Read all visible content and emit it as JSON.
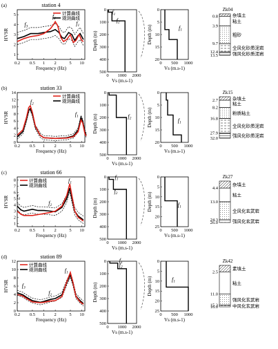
{
  "panels": [
    {
      "letter": "(a)",
      "station": "station 4",
      "legend": [
        "计算曲线",
        "观测曲线"
      ],
      "hv": {
        "xlabel": "Frequency (Hz)",
        "ylabel": "HVSR",
        "xticks": [
          "0.2",
          "0.5",
          "1",
          "2",
          "5",
          "10"
        ],
        "yticks": [
          "1",
          "2",
          "3",
          "4",
          "5"
        ],
        "ymin": 0.5,
        "ymax": 5.5,
        "red": [
          [
            0.2,
            2.3
          ],
          [
            0.3,
            2.6
          ],
          [
            0.45,
            2.8
          ],
          [
            0.7,
            2.9
          ],
          [
            1,
            3.1
          ],
          [
            1.5,
            3.6
          ],
          [
            1.8,
            4.0
          ],
          [
            2,
            4.3
          ],
          [
            2.3,
            3.9
          ],
          [
            2.8,
            2.7
          ],
          [
            3.3,
            2.3
          ],
          [
            4,
            2.5
          ],
          [
            5,
            3.0
          ],
          [
            6,
            2.2
          ],
          [
            7,
            2.4
          ],
          [
            8.5,
            3.0
          ],
          [
            10,
            2.4
          ],
          [
            11,
            2.3
          ]
        ],
        "black": [
          [
            0.2,
            2.6
          ],
          [
            0.3,
            2.8
          ],
          [
            0.45,
            3.1
          ],
          [
            0.7,
            3.1
          ],
          [
            1,
            3.2
          ],
          [
            1.5,
            3.3
          ],
          [
            2,
            3.5
          ],
          [
            2.5,
            3.2
          ],
          [
            3,
            2.7
          ],
          [
            3.5,
            2.6
          ],
          [
            4.5,
            3.2
          ],
          [
            5.5,
            3.0
          ],
          [
            6.5,
            2.4
          ],
          [
            8,
            2.9
          ],
          [
            9,
            3.1
          ],
          [
            11,
            2.5
          ]
        ],
        "peaks": [
          {
            "label": "f3",
            "f": 0.35,
            "v": 3.7
          },
          {
            "label": "f2",
            "f": 1.9,
            "v": 4.5
          },
          {
            "label": "f1",
            "f": 8,
            "v": 3.8
          }
        ]
      },
      "vs": {
        "xlabel": "Vs (m.s-1)",
        "ylabel": "Depth (m)",
        "xticks": [
          "0",
          "1000",
          "2000"
        ],
        "xmax": 2000,
        "yticks": [
          "0",
          "100",
          "200",
          "300",
          "400",
          "500"
        ],
        "ymax": 500,
        "steps": [
          [
            50,
            0
          ],
          [
            50,
            20
          ],
          [
            300,
            20
          ],
          [
            300,
            90
          ],
          [
            1200,
            90
          ],
          [
            1200,
            500
          ]
        ],
        "peaks": [
          {
            "label": "f1",
            "v": 300,
            "d": 35
          },
          {
            "label": "f2",
            "v": 600,
            "d": 100
          }
        ]
      },
      "vsz": {
        "xlabel": "Vs (m.s-1)",
        "ylabel": "Depth (m)",
        "xticks": [
          "0",
          "500",
          "1000"
        ],
        "xmax": 1000,
        "yticks": [
          "0",
          "5",
          "10",
          "15",
          "20"
        ],
        "ymax": 20,
        "steps": [
          [
            150,
            0
          ],
          [
            150,
            8
          ],
          [
            300,
            8
          ],
          [
            300,
            12
          ],
          [
            600,
            12
          ],
          [
            600,
            20
          ]
        ],
        "peaks": [
          {
            "label": "f1",
            "v": 650,
            "d": 8
          }
        ]
      },
      "bore": {
        "name": "Zk04",
        "layers": [
          {
            "depth": "0.8",
            "label": "杂填土"
          },
          {
            "depth": "3.9",
            "label": "粘土"
          },
          {
            "depth": "9.7",
            "label": "粗砂"
          },
          {
            "depth": "12.4",
            "label": "全风化砂质泥岩"
          },
          {
            "depth": "13.5",
            "label": "强风化砂质泥岩"
          }
        ]
      }
    },
    {
      "letter": "(b)",
      "station": "station 33",
      "legend": [
        "计算曲线",
        "观测曲线"
      ],
      "hv": {
        "xlabel": "Frequency (Hz)",
        "ylabel": "HVSR",
        "xticks": [
          "0.2",
          "0.5",
          "1",
          "2",
          "5",
          "10"
        ],
        "yticks": [
          "0",
          "2",
          "4",
          "6",
          "8",
          "10",
          "12",
          "14"
        ],
        "ymin": 0,
        "ymax": 14,
        "red": [
          [
            0.2,
            2.0
          ],
          [
            0.28,
            3.5
          ],
          [
            0.35,
            7.0
          ],
          [
            0.4,
            9.8
          ],
          [
            0.44,
            10.3
          ],
          [
            0.5,
            8.5
          ],
          [
            0.6,
            4.5
          ],
          [
            0.8,
            2.0
          ],
          [
            1,
            1.3
          ],
          [
            2,
            1.1
          ],
          [
            4,
            1.2
          ],
          [
            6,
            1.6
          ],
          [
            8,
            3.0
          ],
          [
            9.5,
            6.3
          ],
          [
            10.5,
            5.5
          ],
          [
            12,
            2.5
          ],
          [
            13,
            1.8
          ]
        ],
        "black": [
          [
            0.2,
            1.5
          ],
          [
            0.28,
            3.0
          ],
          [
            0.35,
            6.5
          ],
          [
            0.4,
            9.0
          ],
          [
            0.44,
            9.5
          ],
          [
            0.5,
            8.0
          ],
          [
            0.6,
            4.3
          ],
          [
            0.8,
            2.0
          ],
          [
            1,
            1.3
          ],
          [
            2,
            1.1
          ],
          [
            4,
            1.3
          ],
          [
            6,
            1.8
          ],
          [
            8,
            3.5
          ],
          [
            9.5,
            7.0
          ],
          [
            10.5,
            6.0
          ],
          [
            12,
            3.0
          ],
          [
            13,
            2.0
          ]
        ],
        "peaks": [
          {
            "label": "f2",
            "f": 0.5,
            "v": 10.5
          },
          {
            "label": "f1",
            "f": 7.5,
            "v": 7.0
          }
        ]
      },
      "vs": {
        "xlabel": "Vs (m.s-1)",
        "ylabel": "Depth (m)",
        "xticks": [
          "0",
          "1000",
          "2000"
        ],
        "xmax": 2000,
        "yticks": [
          "0",
          "100",
          "200",
          "300",
          "400",
          "500"
        ],
        "ymax": 500,
        "steps": [
          [
            100,
            0
          ],
          [
            100,
            20
          ],
          [
            600,
            20
          ],
          [
            600,
            200
          ],
          [
            1300,
            200
          ],
          [
            1300,
            500
          ]
        ],
        "peaks": [
          {
            "label": "f2",
            "v": 1400,
            "d": 205
          }
        ]
      },
      "vsz": {
        "xlabel": "Vs (m.s-1)",
        "ylabel": "Depth (m)",
        "xticks": [
          "0",
          "500",
          "1000"
        ],
        "xmax": 1000,
        "yticks": [
          "0",
          "5",
          "10",
          "15",
          "20"
        ],
        "ymax": 20,
        "steps": [
          [
            200,
            0
          ],
          [
            200,
            3
          ],
          [
            250,
            3
          ],
          [
            250,
            9
          ],
          [
            450,
            9
          ],
          [
            450,
            17
          ],
          [
            750,
            17
          ],
          [
            750,
            20
          ]
        ],
        "peaks": [
          {
            "label": "f1",
            "v": 620,
            "d": 12
          }
        ]
      },
      "bore": {
        "name": "Zk15",
        "layers": [
          {
            "depth": "2.7",
            "label": "杂填土"
          },
          {
            "depth": "8.2",
            "label": "粘土"
          },
          {
            "depth": "16.8",
            "label": "粉质粘土"
          },
          {
            "depth": "27.9",
            "label": "全风化砂质泥岩"
          },
          {
            "depth": "32.0",
            "label": "强风化砂质泥岩"
          }
        ]
      }
    },
    {
      "letter": "(c)",
      "station": "station 66",
      "legend": [
        "计算曲线",
        "观测曲线"
      ],
      "hv": {
        "xlabel": "Frequency (Hz)",
        "ylabel": "HVSR",
        "xticks": [
          "0.2",
          "0.5",
          "1",
          "2",
          "5",
          "10"
        ],
        "yticks": [
          "1",
          "2",
          "3",
          "4",
          "5",
          "6",
          "7",
          "8"
        ],
        "ymin": 0.5,
        "ymax": 8.5,
        "red": [
          [
            0.2,
            3.0
          ],
          [
            0.25,
            2.5
          ],
          [
            0.3,
            2.3
          ],
          [
            0.5,
            2.3
          ],
          [
            0.8,
            2.5
          ],
          [
            1,
            2.6
          ],
          [
            1.5,
            2.8
          ],
          [
            2,
            3.0
          ],
          [
            3,
            3.8
          ],
          [
            4,
            5.5
          ],
          [
            4.8,
            7.4
          ],
          [
            5.5,
            5.5
          ],
          [
            6.5,
            3.0
          ],
          [
            8,
            2.0
          ],
          [
            11,
            1.4
          ]
        ],
        "black": [
          [
            0.2,
            3.8
          ],
          [
            0.25,
            3.2
          ],
          [
            0.3,
            3.0
          ],
          [
            0.5,
            3.3
          ],
          [
            0.7,
            3.1
          ],
          [
            1,
            3.1
          ],
          [
            1.5,
            3.0
          ],
          [
            2,
            2.9
          ],
          [
            3,
            3.6
          ],
          [
            4,
            5.0
          ],
          [
            4.8,
            6.7
          ],
          [
            5.5,
            5.0
          ],
          [
            6.5,
            3.0
          ],
          [
            8,
            2.2
          ],
          [
            11,
            1.6
          ]
        ],
        "peaks": [
          {
            "label": "f3",
            "f": 0.22,
            "v": 4.8
          },
          {
            "label": "f2",
            "f": 1.5,
            "v": 3.8
          },
          {
            "label": "f1",
            "f": 5,
            "v": 7.4
          }
        ]
      },
      "vs": {
        "xlabel": "Vs (m.s-1)",
        "ylabel": "Depth (m)",
        "xticks": [
          "0",
          "1000",
          "2000"
        ],
        "xmax": 2000,
        "yticks": [
          "0",
          "100",
          "200",
          "300",
          "400",
          "500"
        ],
        "ymax": 500,
        "steps": [
          [
            100,
            0
          ],
          [
            100,
            20
          ],
          [
            400,
            20
          ],
          [
            400,
            100
          ],
          [
            1300,
            100
          ],
          [
            1300,
            500
          ]
        ],
        "peaks": [
          {
            "label": "f1",
            "v": 500,
            "d": 18
          },
          {
            "label": "f2",
            "v": 450,
            "d": 130
          }
        ]
      },
      "vsz": {
        "xlabel": "Vs (m.s-1)",
        "ylabel": "Depth (m)",
        "xticks": [
          "0",
          "500",
          "1000"
        ],
        "xmax": 1000,
        "yticks": [
          "0",
          "5",
          "10",
          "15",
          "20",
          "25"
        ],
        "ymax": 25,
        "steps": [
          [
            150,
            0
          ],
          [
            150,
            12
          ],
          [
            600,
            12
          ],
          [
            600,
            25
          ]
        ],
        "peaks": [
          {
            "label": "f1",
            "v": 620,
            "d": 15
          }
        ]
      },
      "bore": {
        "name": "Zk27",
        "layers": [
          {
            "depth": "4.4",
            "label": "杂填土"
          },
          {
            "depth": "13.0",
            "label": "粘土"
          },
          {
            "depth": "24.3",
            "label": "全风化玄武岩"
          },
          {
            "depth": "26.0",
            "label": "强风化玄武岩"
          }
        ]
      }
    },
    {
      "letter": "(d)",
      "station": "station 89",
      "legend": [
        "计算曲线",
        "观测曲线"
      ],
      "hv": {
        "xlabel": "Frequency (Hz)",
        "ylabel": "HVSR",
        "xticks": [
          "0.2",
          "0.5",
          "1",
          "2",
          "5",
          "10"
        ],
        "yticks": [
          "0",
          "2",
          "4",
          "6",
          "8",
          "10",
          "12"
        ],
        "ymin": 0,
        "ymax": 12,
        "red": [
          [
            0.2,
            4.0
          ],
          [
            0.28,
            3.6
          ],
          [
            0.35,
            3.0
          ],
          [
            0.5,
            2.2
          ],
          [
            0.8,
            2.0
          ],
          [
            1,
            2.1
          ],
          [
            1.5,
            2.4
          ],
          [
            2,
            2.5
          ],
          [
            3,
            3.5
          ],
          [
            4,
            7.0
          ],
          [
            5,
            9.3
          ],
          [
            5.8,
            7.0
          ],
          [
            7,
            3.5
          ],
          [
            9,
            2.2
          ],
          [
            11,
            1.6
          ]
        ],
        "black": [
          [
            0.2,
            4.4
          ],
          [
            0.28,
            3.9
          ],
          [
            0.35,
            3.3
          ],
          [
            0.5,
            2.5
          ],
          [
            0.8,
            2.1
          ],
          [
            1,
            2.3
          ],
          [
            1.5,
            2.8
          ],
          [
            2,
            3.0
          ],
          [
            3,
            3.9
          ],
          [
            4,
            6.8
          ],
          [
            5,
            8.7
          ],
          [
            5.8,
            6.8
          ],
          [
            7,
            3.6
          ],
          [
            9,
            2.5
          ],
          [
            11,
            1.8
          ]
        ],
        "peaks": [
          {
            "label": "f3",
            "f": 0.3,
            "v": 5.3
          },
          {
            "label": "f2",
            "f": 1.5,
            "v": 3.6
          },
          {
            "label": "f1",
            "f": 4,
            "v": 9.0
          }
        ]
      },
      "vs": {
        "xlabel": "Vs (m.s-1)",
        "ylabel": "Depth (m)",
        "xticks": [
          "0",
          "1000",
          "2000"
        ],
        "xmax": 2000,
        "yticks": [
          "0",
          "100",
          "200",
          "300",
          "400",
          "500"
        ],
        "ymax": 500,
        "steps": [
          [
            150,
            0
          ],
          [
            150,
            15
          ],
          [
            700,
            15
          ],
          [
            700,
            60
          ],
          [
            1300,
            60
          ],
          [
            1300,
            500
          ]
        ],
        "peaks": [
          {
            "label": "f1",
            "v": 800,
            "d": 8
          },
          {
            "label": "f2",
            "v": 800,
            "d": 45
          }
        ]
      },
      "vsz": {
        "xlabel": "Vs (m.s-1)",
        "ylabel": "Depth (m)",
        "xticks": [
          "0",
          "500",
          "1000"
        ],
        "xmax": 1000,
        "yticks": [
          "0",
          "5",
          "10",
          "15",
          "20",
          "25"
        ],
        "ymax": 25,
        "steps": [
          [
            200,
            0
          ],
          [
            200,
            13
          ],
          [
            1000,
            13
          ],
          [
            1000,
            25
          ]
        ],
        "peaks": [
          {
            "label": "f1",
            "v": 400,
            "d": 10
          }
        ]
      },
      "bore": {
        "name": "Zk42",
        "layers": [
          {
            "depth": "2.5",
            "label": "素填土"
          },
          {
            "depth": "11.0",
            "label": "粘土"
          },
          {
            "depth": "15.3",
            "label": "强风化玄武岩"
          },
          {
            "depth": "16.0",
            "label": "中风化玄武岩"
          }
        ]
      }
    }
  ]
}
